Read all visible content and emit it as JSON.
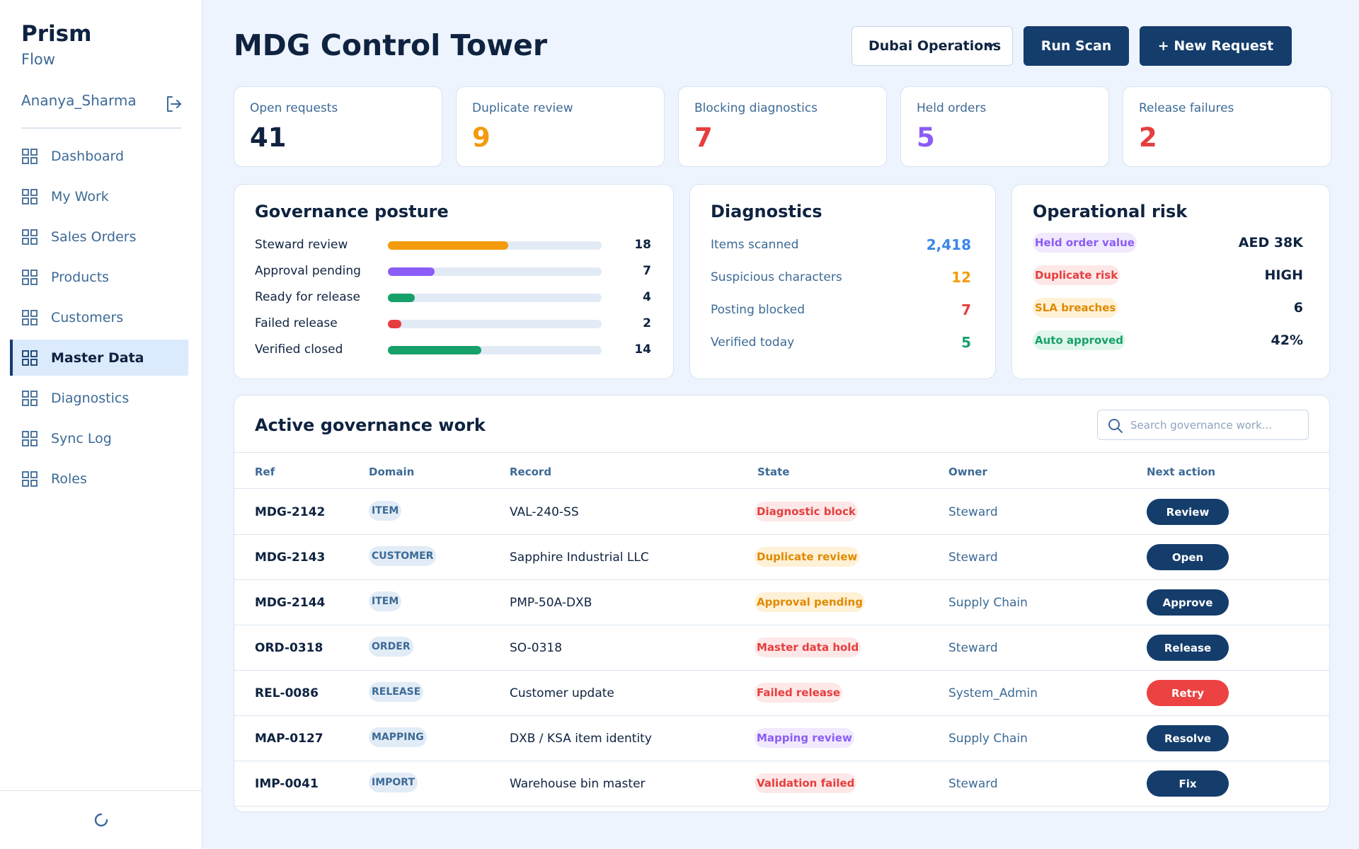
{
  "app": {
    "name": "Prism",
    "sub": "Flow"
  },
  "user": {
    "name": "Ananya_Sharma"
  },
  "nav": [
    {
      "label": "Dashboard",
      "slug": "dashboard"
    },
    {
      "label": "My Work",
      "slug": "my-work"
    },
    {
      "label": "Sales Orders",
      "slug": "sales-orders"
    },
    {
      "label": "Products",
      "slug": "products"
    },
    {
      "label": "Customers",
      "slug": "customers"
    },
    {
      "label": "Master Data",
      "slug": "master-data",
      "active": true
    },
    {
      "label": "Diagnostics",
      "slug": "diagnostics"
    },
    {
      "label": "Sync Log",
      "slug": "sync-log"
    },
    {
      "label": "Roles",
      "slug": "roles"
    }
  ],
  "header": {
    "title": "MDG Control Tower",
    "site_select": "Dubai Operations",
    "run_scan": "Run Scan",
    "new_request": "+ New Request"
  },
  "kpis": [
    {
      "label": "Open requests",
      "value": "41",
      "color": "#0f2340"
    },
    {
      "label": "Duplicate review",
      "value": "9",
      "color": "#f29b0c"
    },
    {
      "label": "Blocking diagnostics",
      "value": "7",
      "color": "#e53e3e"
    },
    {
      "label": "Held orders",
      "value": "5",
      "color": "#8b5cf6"
    },
    {
      "label": "Release failures",
      "value": "2",
      "color": "#e53e3e"
    }
  ],
  "governance": {
    "title": "Governance posture",
    "max": 32,
    "rows": [
      {
        "label": "Steward review",
        "value": 18,
        "color": "#f29b0c"
      },
      {
        "label": "Approval pending",
        "value": 7,
        "color": "#8b5cf6"
      },
      {
        "label": "Ready for release",
        "value": 4,
        "color": "#16a06a"
      },
      {
        "label": "Failed release",
        "value": 2,
        "color": "#e53e3e"
      },
      {
        "label": "Verified closed",
        "value": 14,
        "color": "#16a06a"
      }
    ]
  },
  "diagnostics": {
    "title": "Diagnostics",
    "rows": [
      {
        "label": "Items scanned",
        "value": "2,418",
        "color": "#3a86e8"
      },
      {
        "label": "Suspicious characters",
        "value": "12",
        "color": "#f29b0c"
      },
      {
        "label": "Posting blocked",
        "value": "7",
        "color": "#e53e3e"
      },
      {
        "label": "Verified today",
        "value": "5",
        "color": "#16a06a"
      }
    ]
  },
  "risk": {
    "title": "Operational risk",
    "rows": [
      {
        "label": "Held order value",
        "value": "AED 38K",
        "fg": "#8b5cf6",
        "bg": "#f1e9fe"
      },
      {
        "label": "Duplicate risk",
        "value": "HIGH",
        "fg": "#e53e3e",
        "bg": "#fde7e7"
      },
      {
        "label": "SLA breaches",
        "value": "6",
        "fg": "#e08a00",
        "bg": "#fef1d6"
      },
      {
        "label": "Auto approved",
        "value": "42%",
        "fg": "#16a06a",
        "bg": "#e0f6ea"
      }
    ]
  },
  "work": {
    "title": "Active governance work",
    "search_placeholder": "Search governance work...",
    "columns": [
      "Ref",
      "Domain",
      "Record",
      "State",
      "Owner",
      "Next action"
    ],
    "rows": [
      {
        "ref": "MDG-2142",
        "domain": "ITEM",
        "record": "VAL-240-SS",
        "state": "Diagnostic block",
        "state_fg": "#e53e3e",
        "state_bg": "#fde7e7",
        "owner": "Steward",
        "action": "Review",
        "action_color": "#143d6b"
      },
      {
        "ref": "MDG-2143",
        "domain": "CUSTOMER",
        "record": "Sapphire Industrial LLC",
        "state": "Duplicate review",
        "state_fg": "#e08a00",
        "state_bg": "#fef1d6",
        "owner": "Steward",
        "action": "Open",
        "action_color": "#143d6b"
      },
      {
        "ref": "MDG-2144",
        "domain": "ITEM",
        "record": "PMP-50A-DXB",
        "state": "Approval pending",
        "state_fg": "#e08a00",
        "state_bg": "#fef1d6",
        "owner": "Supply Chain",
        "action": "Approve",
        "action_color": "#143d6b"
      },
      {
        "ref": "ORD-0318",
        "domain": "ORDER",
        "record": "SO-0318",
        "state": "Master data hold",
        "state_fg": "#e53e3e",
        "state_bg": "#fde7e7",
        "owner": "Steward",
        "action": "Release",
        "action_color": "#143d6b"
      },
      {
        "ref": "REL-0086",
        "domain": "RELEASE",
        "record": "Customer update",
        "state": "Failed release",
        "state_fg": "#e53e3e",
        "state_bg": "#fde7e7",
        "owner": "System_Admin",
        "action": "Retry",
        "action_color": "#ec4242"
      },
      {
        "ref": "MAP-0127",
        "domain": "MAPPING",
        "record": "DXB / KSA item identity",
        "state": "Mapping review",
        "state_fg": "#8b5cf6",
        "state_bg": "#f1e9fe",
        "owner": "Supply Chain",
        "action": "Resolve",
        "action_color": "#143d6b"
      },
      {
        "ref": "IMP-0041",
        "domain": "IMPORT",
        "record": "Warehouse bin master",
        "state": "Validation failed",
        "state_fg": "#e53e3e",
        "state_bg": "#fde7e7",
        "owner": "Steward",
        "action": "Fix",
        "action_color": "#143d6b"
      }
    ]
  }
}
